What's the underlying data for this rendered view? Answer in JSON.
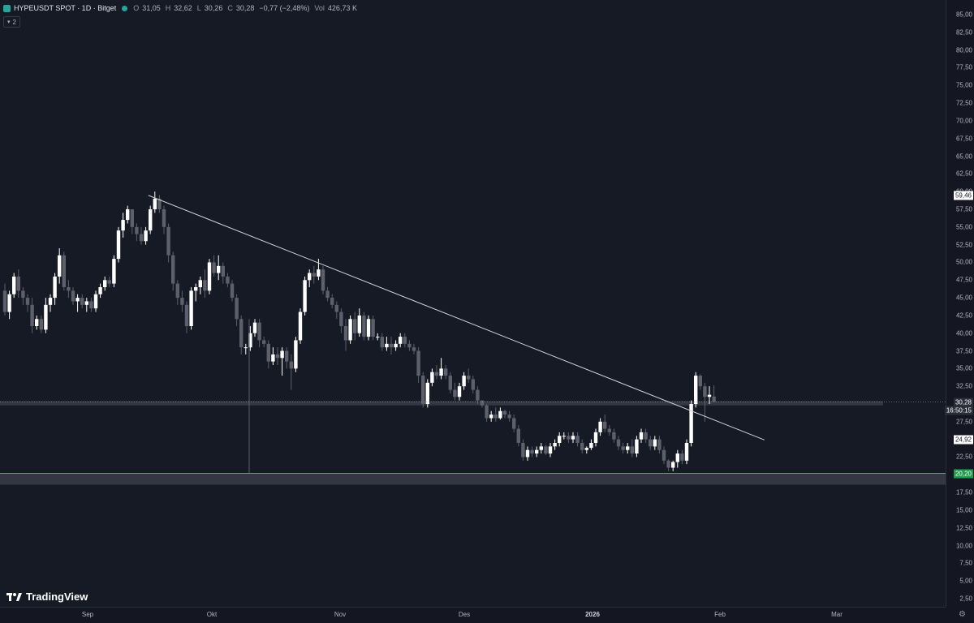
{
  "header": {
    "symbol": "HYPEUSDT SPOT · 1D · Bitget",
    "o_label": "O",
    "o_value": "31,05",
    "h_label": "H",
    "h_value": "32,62",
    "l_label": "L",
    "l_value": "30,26",
    "c_label": "C",
    "c_value": "30,28",
    "change": "−0,77 (−2,48%)",
    "vol_label": "Vol",
    "vol_value": "426,73 K",
    "indicator_count": "2",
    "status_color": "#26a69a"
  },
  "price_axis": {
    "ticks": [
      "85,00",
      "82,50",
      "80,00",
      "77,50",
      "75,00",
      "72,50",
      "70,00",
      "67,50",
      "65,00",
      "62,50",
      "60,00",
      "57,50",
      "55,00",
      "52,50",
      "50,00",
      "47,50",
      "45,00",
      "42,50",
      "40,00",
      "37,50",
      "35,00",
      "32,50",
      "30,00",
      "27,50",
      "25,00",
      "22,50",
      "20,00",
      "17,50",
      "15,00",
      "12,50",
      "10,00",
      "7,50",
      "5,00",
      "2,50"
    ],
    "labels": {
      "high": "59,46",
      "last": "30,28",
      "countdown": "16:50:15",
      "line": "24,92",
      "support": "20,20"
    }
  },
  "time_axis": {
    "labels": [
      {
        "text": "Sep",
        "bold": false
      },
      {
        "text": "Okt",
        "bold": false
      },
      {
        "text": "Nov",
        "bold": false
      },
      {
        "text": "Des",
        "bold": false
      },
      {
        "text": "2026",
        "bold": true
      },
      {
        "text": "Feb",
        "bold": false
      },
      {
        "text": "Mar",
        "bold": false
      }
    ]
  },
  "branding": {
    "logo_text": "TradingView"
  },
  "colors": {
    "up": "#ffffff",
    "down": "#5d606b",
    "support": "#4caf50",
    "zone": "#3a3d47",
    "trendline": "#d1d4dc"
  },
  "chart_data": {
    "type": "candlestick",
    "symbol": "HYPEUSDT",
    "timeframe": "1D",
    "ylim": [
      0,
      86
    ],
    "x_ticks": [
      "Sep",
      "Okt",
      "Nov",
      "Des",
      "2026",
      "Feb",
      "Mar"
    ],
    "ohlc": [
      [
        46,
        47,
        42.5,
        43
      ],
      [
        43,
        46,
        42,
        45.5
      ],
      [
        45.5,
        48.5,
        45,
        48
      ],
      [
        48,
        49,
        45,
        46
      ],
      [
        46,
        46.5,
        44,
        45
      ],
      [
        45,
        45.5,
        43,
        44
      ],
      [
        44,
        45,
        40,
        41
      ],
      [
        41,
        42.5,
        40.5,
        42
      ],
      [
        42,
        42.5,
        40,
        40.5
      ],
      [
        40.5,
        45,
        40,
        44
      ],
      [
        44,
        45.5,
        43,
        45
      ],
      [
        45,
        48.5,
        44,
        48
      ],
      [
        48,
        52,
        47,
        51
      ],
      [
        51,
        51.5,
        46,
        46.5
      ],
      [
        46.5,
        47.5,
        45,
        46
      ],
      [
        46,
        46.5,
        44,
        44.5
      ],
      [
        44.5,
        45.5,
        43,
        45
      ],
      [
        45,
        45.5,
        43.5,
        44
      ],
      [
        44,
        45,
        43,
        44.5
      ],
      [
        44.5,
        45,
        43,
        43.5
      ],
      [
        43.5,
        46,
        43,
        45.5
      ],
      [
        45.5,
        47,
        45,
        46.5
      ],
      [
        46.5,
        48,
        46,
        47.5
      ],
      [
        47.5,
        48,
        46.5,
        47
      ],
      [
        47,
        51,
        46.5,
        50.5
      ],
      [
        50.5,
        55,
        50,
        54.5
      ],
      [
        54.5,
        57,
        53.5,
        56
      ],
      [
        56,
        58,
        55.5,
        57.5
      ],
      [
        57.5,
        57.5,
        54,
        55
      ],
      [
        55,
        55.5,
        53,
        54
      ],
      [
        54,
        55,
        52.5,
        53
      ],
      [
        53,
        55,
        52.5,
        54.5
      ],
      [
        54.5,
        58,
        54,
        57.5
      ],
      [
        57.5,
        60,
        57,
        59
      ],
      [
        59,
        59.5,
        57,
        57.5
      ],
      [
        57.5,
        58,
        54,
        55
      ],
      [
        55,
        55.5,
        50,
        51
      ],
      [
        51,
        51.5,
        46,
        47
      ],
      [
        47,
        47.5,
        44,
        45
      ],
      [
        45,
        46,
        43,
        44
      ],
      [
        44,
        44.5,
        40,
        41
      ],
      [
        41,
        46.5,
        40.5,
        46
      ],
      [
        46,
        47,
        44.5,
        46.5
      ],
      [
        46.5,
        48,
        45.5,
        47.5
      ],
      [
        47.5,
        49,
        45,
        46
      ],
      [
        46,
        50.5,
        45.5,
        50
      ],
      [
        50,
        51,
        48,
        48.5
      ],
      [
        48.5,
        51,
        47.5,
        49.5
      ],
      [
        49.5,
        50,
        47,
        48
      ],
      [
        48,
        48.5,
        46.5,
        47
      ],
      [
        47,
        47.5,
        44.5,
        45
      ],
      [
        45,
        45.5,
        41,
        42
      ],
      [
        42,
        42.5,
        37,
        38
      ],
      [
        38,
        38.5,
        37,
        38
      ],
      [
        38,
        41,
        37.5,
        40
      ],
      [
        40,
        42,
        39.5,
        41.5
      ],
      [
        41.5,
        42,
        38,
        39
      ],
      [
        39,
        39.5,
        38,
        38.5
      ],
      [
        38.5,
        39,
        35,
        36
      ],
      [
        36,
        38,
        35.5,
        37
      ],
      [
        37,
        38,
        35.5,
        36.5
      ],
      [
        36.5,
        38,
        34,
        37.5
      ],
      [
        37.5,
        38,
        35,
        36
      ],
      [
        36,
        37,
        32,
        35
      ],
      [
        35,
        39.5,
        34.5,
        39
      ],
      [
        39,
        43.5,
        38.5,
        43
      ],
      [
        43,
        48,
        42.5,
        47.5
      ],
      [
        47.5,
        49,
        46.5,
        48.5
      ],
      [
        48.5,
        49.5,
        47,
        48
      ],
      [
        48,
        50.5,
        47.5,
        49
      ],
      [
        49,
        49.5,
        45.5,
        46
      ],
      [
        46,
        46.5,
        44.5,
        45
      ],
      [
        45,
        45.5,
        43.5,
        44
      ],
      [
        44,
        44.5,
        42,
        43
      ],
      [
        43,
        43.5,
        40,
        41
      ],
      [
        41,
        42,
        37.5,
        39
      ],
      [
        39,
        42.5,
        38.5,
        42
      ],
      [
        42,
        43,
        39,
        40
      ],
      [
        40,
        43.5,
        39.5,
        42.5
      ],
      [
        42.5,
        43,
        39,
        39.5
      ],
      [
        39.5,
        42.5,
        39,
        42
      ],
      [
        42,
        42.5,
        39,
        39.5
      ],
      [
        39.5,
        40,
        39,
        39.5
      ],
      [
        39.5,
        40,
        37.5,
        38
      ],
      [
        38,
        39.5,
        37.5,
        38.5
      ],
      [
        38.5,
        39.5,
        37,
        38
      ],
      [
        38,
        39,
        37.5,
        38.5
      ],
      [
        38.5,
        40,
        38,
        39.5
      ],
      [
        39.5,
        40,
        38,
        38.5
      ],
      [
        38.5,
        39,
        37.5,
        38
      ],
      [
        38,
        38.5,
        37,
        37.5
      ],
      [
        37.5,
        38,
        33,
        34
      ],
      [
        34,
        34.5,
        29.5,
        30
      ],
      [
        30,
        33.5,
        29.5,
        33
      ],
      [
        33,
        35,
        32.5,
        34.5
      ],
      [
        34.5,
        35.5,
        33.5,
        34
      ],
      [
        34,
        36.5,
        33.5,
        35
      ],
      [
        35,
        35.5,
        33.5,
        34
      ],
      [
        34,
        34.5,
        31.5,
        32
      ],
      [
        32,
        33,
        30.5,
        31
      ],
      [
        31,
        33,
        30.5,
        32.5
      ],
      [
        32.5,
        34.5,
        32,
        34
      ],
      [
        34,
        35,
        33,
        33.5
      ],
      [
        33.5,
        34,
        31.5,
        32
      ],
      [
        32,
        32.5,
        30,
        30.5
      ],
      [
        30.5,
        30.5,
        29.5,
        29.8
      ],
      [
        29.8,
        30,
        27.5,
        28
      ],
      [
        28,
        29,
        27.5,
        28.5
      ],
      [
        28.5,
        29.5,
        27.5,
        28
      ],
      [
        28,
        29.5,
        27.8,
        29
      ],
      [
        29,
        29.2,
        28,
        28.5
      ],
      [
        28.5,
        29,
        27.5,
        28
      ],
      [
        28,
        28.5,
        26,
        26.5
      ],
      [
        26.5,
        27,
        24,
        24.5
      ],
      [
        24.5,
        25,
        22,
        22.5
      ],
      [
        22.5,
        24,
        22,
        23.5
      ],
      [
        23.5,
        24,
        22.5,
        23
      ],
      [
        23,
        24,
        22.5,
        23.5
      ],
      [
        23.5,
        24.5,
        23,
        24
      ],
      [
        24,
        24.2,
        22.8,
        23
      ],
      [
        23,
        24.5,
        22.5,
        24
      ],
      [
        24,
        25,
        23.5,
        24.5
      ],
      [
        24.5,
        26,
        24,
        25.5
      ],
      [
        25.5,
        26,
        25,
        25.5
      ],
      [
        25.5,
        26,
        24.5,
        25
      ],
      [
        25,
        26,
        24.5,
        25.5
      ],
      [
        25.5,
        26,
        24,
        24.5
      ],
      [
        24.5,
        25,
        23,
        23.5
      ],
      [
        23.5,
        24,
        23,
        23.8
      ],
      [
        23.8,
        25,
        23.5,
        24.5
      ],
      [
        24.5,
        26.5,
        24,
        26
      ],
      [
        26,
        28,
        25.5,
        27.5
      ],
      [
        27.5,
        28.5,
        26,
        26.5
      ],
      [
        26.5,
        27,
        25.5,
        26
      ],
      [
        26,
        26.5,
        24.5,
        25
      ],
      [
        25,
        25.5,
        23.5,
        24
      ],
      [
        24,
        24.5,
        23,
        23.5
      ],
      [
        23.5,
        24.5,
        23,
        24
      ],
      [
        24,
        25,
        22.5,
        23
      ],
      [
        23,
        25.5,
        22.5,
        25
      ],
      [
        25,
        26.5,
        24.5,
        26
      ],
      [
        26,
        26.5,
        24.5,
        25
      ],
      [
        25,
        25.5,
        23.5,
        24
      ],
      [
        24,
        25.5,
        23.5,
        25
      ],
      [
        25,
        25.5,
        23,
        23.5
      ],
      [
        23.5,
        24,
        21.5,
        22
      ],
      [
        22,
        22.2,
        20.5,
        21
      ],
      [
        21,
        22,
        20.5,
        21.8
      ],
      [
        21.8,
        23.5,
        21,
        23
      ],
      [
        23,
        23.5,
        21.5,
        22
      ],
      [
        22,
        25,
        21.5,
        24.5
      ],
      [
        24.5,
        30.5,
        24,
        30
      ],
      [
        30,
        34.5,
        29.5,
        34
      ],
      [
        34,
        34.2,
        32,
        32.5
      ],
      [
        32.5,
        33,
        27.5,
        31
      ],
      [
        31,
        32.5,
        30,
        31.3
      ],
      [
        31.05,
        32.62,
        30.26,
        30.28
      ]
    ],
    "trendline": {
      "start_index": 33,
      "start_value": 59.46,
      "end_index": 168,
      "end_value": 24.92
    },
    "support_level": 20.2,
    "zones": [
      {
        "from": 29.8,
        "to": 30.4
      },
      {
        "from": 18.6,
        "to": 20.2
      }
    ],
    "last_price": 30.28,
    "spike_low": 20.2
  }
}
